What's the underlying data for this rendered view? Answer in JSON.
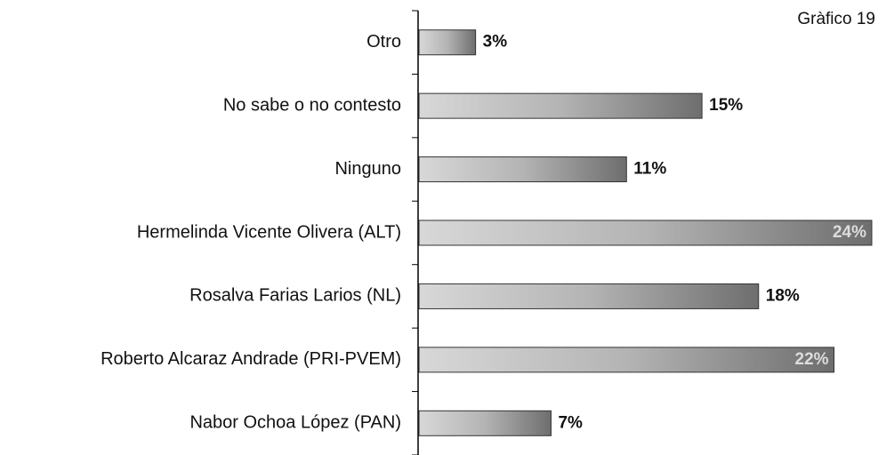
{
  "chart_data": {
    "type": "hbar",
    "title": "Gràfico 19",
    "categories": [
      "Otro",
      "No sabe o no contesto",
      "Ninguno",
      "Hermelinda Vicente Olivera (ALT)",
      "Rosalva Farias Larios (NL)",
      "Roberto Alcaraz Andrade (PRI-PVEM)",
      "Nabor Ochoa López (PAN)"
    ],
    "values": [
      3,
      15,
      11,
      24,
      18,
      22,
      7
    ],
    "value_labels": [
      "3%",
      "15%",
      "11%",
      "24%",
      "18%",
      "22%",
      "7%"
    ],
    "color": "#8c8c8c",
    "xlim": [
      0,
      24
    ]
  }
}
